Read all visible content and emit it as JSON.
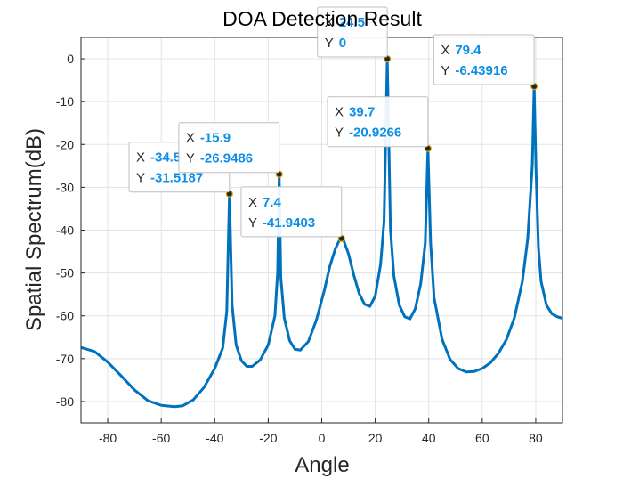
{
  "chart_data": {
    "type": "line",
    "title": "DOA Detection Result",
    "xlabel": "Angle",
    "ylabel": "Spatial Spectrum(dB)",
    "xlim": [
      -90,
      90
    ],
    "ylim": [
      -85,
      5
    ],
    "xticks": [
      -80,
      -60,
      -40,
      -20,
      0,
      20,
      40,
      60,
      80
    ],
    "yticks": [
      0,
      -10,
      -20,
      -30,
      -40,
      -50,
      -60,
      -70,
      -80
    ],
    "grid": true,
    "line_color": "#0072bd",
    "series": [
      {
        "x": [
          -90,
          -85,
          -80,
          -75,
          -70,
          -65,
          -60,
          -55,
          -52,
          -48,
          -44,
          -40,
          -37,
          -35.5,
          -34.5,
          -33.5,
          -32,
          -30,
          -28,
          -26,
          -23,
          -20,
          -17.5,
          -16.5,
          -15.9,
          -15.3,
          -14,
          -12,
          -10,
          -8,
          -5,
          -2,
          1,
          3,
          5,
          6.5,
          7.4,
          8.3,
          10,
          12,
          14,
          16,
          18,
          20,
          22,
          23.3,
          24.5,
          25.7,
          27,
          29,
          31,
          33,
          35,
          37,
          38.7,
          39.7,
          40.7,
          42,
          45,
          48,
          51,
          54,
          57,
          60,
          63,
          66,
          69,
          72,
          75,
          77,
          78.7,
          79.4,
          80.1,
          81,
          82,
          84,
          86,
          88,
          90
        ],
        "y": [
          -67.4,
          -68.3,
          -70.8,
          -74,
          -77.3,
          -79.8,
          -80.9,
          -81.2,
          -81,
          -79.6,
          -76.7,
          -72.3,
          -67.5,
          -59,
          -31.52,
          -57.5,
          -66.8,
          -70.5,
          -71.8,
          -71.8,
          -70.3,
          -66.8,
          -60,
          -50,
          -26.95,
          -51,
          -60.5,
          -65.8,
          -67.8,
          -68,
          -66,
          -61,
          -54,
          -48.5,
          -44.5,
          -42.5,
          -41.94,
          -42.6,
          -45.5,
          -50.5,
          -54.8,
          -57.3,
          -57.8,
          -55.4,
          -48,
          -38,
          0,
          -40,
          -50.8,
          -57.5,
          -60.2,
          -60.7,
          -58.3,
          -52.5,
          -43,
          -20.93,
          -43,
          -55.8,
          -65.5,
          -70.2,
          -72.3,
          -73.1,
          -73,
          -72.3,
          -71,
          -68.8,
          -65.6,
          -60.5,
          -52,
          -42,
          -25,
          -6.44,
          -26,
          -44,
          -52,
          -57.5,
          -59.5,
          -60.2,
          -60.6
        ]
      }
    ],
    "datatips": [
      {
        "x": -34.5,
        "y": -31.5187,
        "x_label": "X",
        "y_label": "Y",
        "x_text": "-34.5",
        "y_text": "-31.5187"
      },
      {
        "x": -15.9,
        "y": -26.9486,
        "x_label": "X",
        "y_label": "Y",
        "x_text": "-15.9",
        "y_text": "-26.9486"
      },
      {
        "x": 7.4,
        "y": -41.9403,
        "x_label": "X",
        "y_label": "Y",
        "x_text": "7.4",
        "y_text": "-41.9403"
      },
      {
        "x": 24.5,
        "y": 0,
        "x_label": "X",
        "y_label": "Y",
        "x_text": "24.5",
        "y_text": "0"
      },
      {
        "x": 39.7,
        "y": -20.9266,
        "x_label": "X",
        "y_label": "Y",
        "x_text": "39.7",
        "y_text": "-20.9266"
      },
      {
        "x": 79.4,
        "y": -6.43916,
        "x_label": "X",
        "y_label": "Y",
        "x_text": "79.4",
        "y_text": "-6.43916"
      }
    ]
  }
}
